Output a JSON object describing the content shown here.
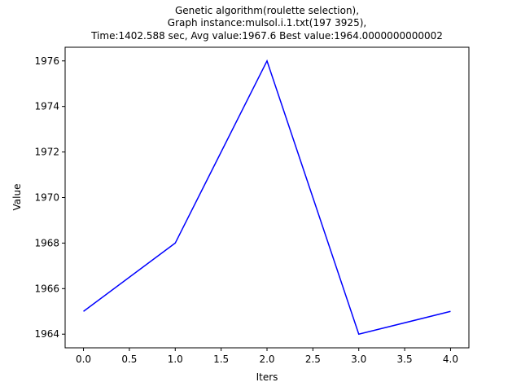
{
  "chart_data": {
    "type": "line",
    "title_lines": [
      "Genetic algorithm(roulette selection),",
      "Graph instance:mulsol.i.1.txt(197 3925),",
      "Time:1402.588 sec, Avg value:1967.6 Best value:1964.0000000000002"
    ],
    "xlabel": "Iters",
    "ylabel": "Value",
    "x": [
      0,
      1,
      2,
      3,
      4
    ],
    "series": [
      {
        "values": [
          1965,
          1968,
          1976,
          1964,
          1965
        ],
        "color": "#0000ff"
      }
    ],
    "xlim": [
      -0.2,
      4.2
    ],
    "ylim": [
      1963.4,
      1976.6
    ],
    "xticks": [
      0.0,
      0.5,
      1.0,
      1.5,
      2.0,
      2.5,
      3.0,
      3.5,
      4.0
    ],
    "xtick_labels": [
      "0.0",
      "0.5",
      "1.0",
      "1.5",
      "2.0",
      "2.5",
      "3.0",
      "3.5",
      "4.0"
    ],
    "yticks": [
      1964,
      1966,
      1968,
      1970,
      1972,
      1974,
      1976
    ],
    "ytick_labels": [
      "1964",
      "1966",
      "1968",
      "1970",
      "1972",
      "1974",
      "1976"
    ],
    "grid": false,
    "legend": false
  }
}
